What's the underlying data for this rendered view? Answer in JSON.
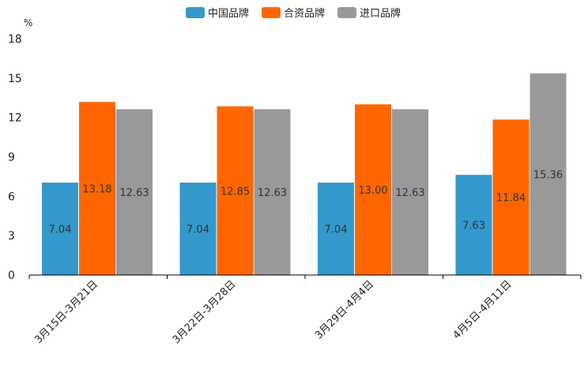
{
  "chart_data": {
    "type": "bar",
    "title": "",
    "unit_label": "%",
    "xlabel": "",
    "ylabel": "",
    "ylim": [
      0,
      18
    ],
    "yticks": [
      0,
      3,
      6,
      9,
      12,
      15,
      18
    ],
    "grid": false,
    "legend_position": "top-center",
    "categories": [
      "3月15日-3月21日",
      "3月22日-3月28日",
      "3月29日-4月4日",
      "4月5日-4月11日"
    ],
    "series": [
      {
        "name": "中国品牌",
        "color": "#3399cc",
        "values": [
          7.04,
          7.04,
          7.04,
          7.63
        ],
        "labels": [
          "7.04",
          "7.04",
          "7.04",
          "7.63"
        ]
      },
      {
        "name": "合资品牌",
        "color": "#ff6600",
        "values": [
          13.18,
          12.85,
          13.0,
          11.84
        ],
        "labels": [
          "13.18",
          "12.85",
          "13.00",
          "11.84"
        ]
      },
      {
        "name": "进口品牌",
        "color": "#999999",
        "values": [
          12.63,
          12.63,
          12.63,
          15.36
        ],
        "labels": [
          "12.63",
          "12.63",
          "12.63",
          "15.36"
        ]
      }
    ]
  }
}
